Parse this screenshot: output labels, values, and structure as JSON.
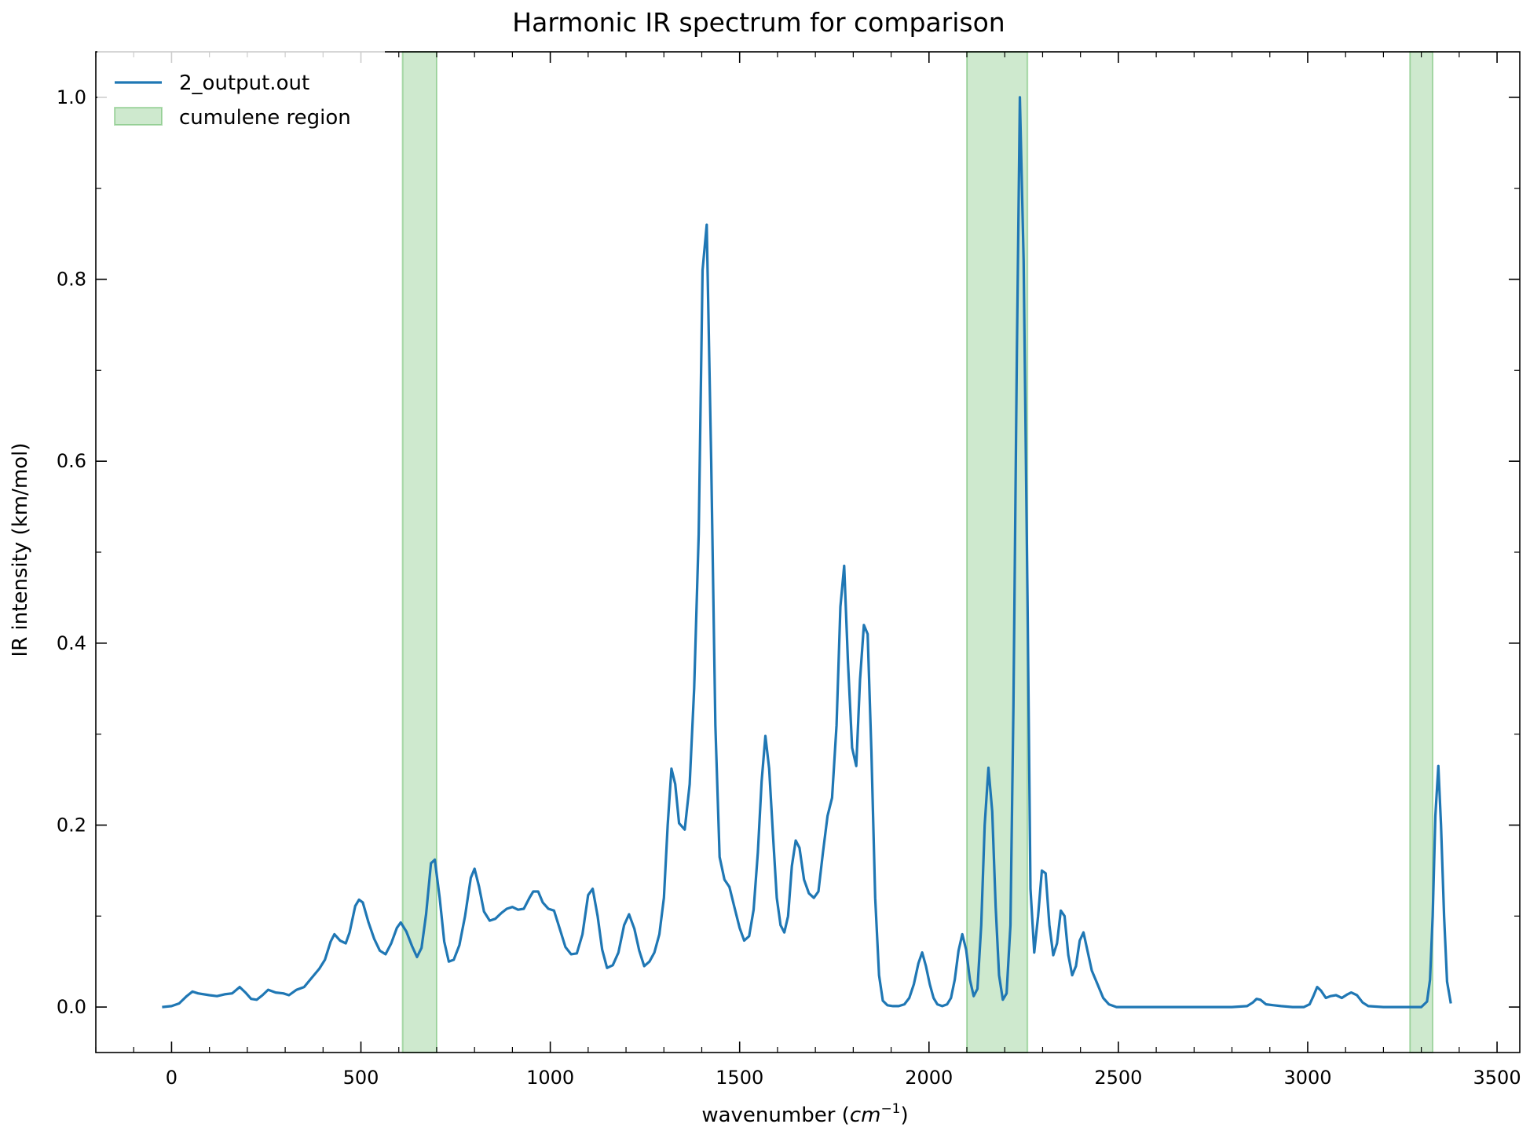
{
  "chart_data": {
    "type": "line",
    "title": "Harmonic IR spectrum for comparison",
    "xlabel": "wavenumber",
    "xlabel_unit_base": "cm",
    "xlabel_unit_exp": "−1",
    "ylabel": "IR intensity (km/mol)",
    "xlim": [
      -200,
      3560
    ],
    "ylim": [
      -0.05,
      1.05
    ],
    "x_ticks": [
      0,
      500,
      1000,
      1500,
      2000,
      2500,
      3000,
      3500
    ],
    "x_tick_labels": [
      "0",
      "500",
      "1000",
      "1500",
      "2000",
      "2500",
      "3000",
      "3500"
    ],
    "y_ticks": [
      0.0,
      0.2,
      0.4,
      0.6,
      0.8,
      1.0
    ],
    "y_tick_labels": [
      "0.0",
      "0.2",
      "0.4",
      "0.6",
      "0.8",
      "1.0"
    ],
    "grid": false,
    "legend_position": "top-left",
    "series": [
      {
        "name": "2_output.out",
        "color": "#1f77b4",
        "points": [
          [
            -25,
            0.0
          ],
          [
            0,
            0.001
          ],
          [
            20,
            0.004
          ],
          [
            40,
            0.012
          ],
          [
            55,
            0.017
          ],
          [
            70,
            0.015
          ],
          [
            100,
            0.013
          ],
          [
            120,
            0.012
          ],
          [
            140,
            0.014
          ],
          [
            160,
            0.015
          ],
          [
            180,
            0.022
          ],
          [
            195,
            0.016
          ],
          [
            210,
            0.009
          ],
          [
            225,
            0.008
          ],
          [
            240,
            0.013
          ],
          [
            255,
            0.019
          ],
          [
            275,
            0.016
          ],
          [
            295,
            0.015
          ],
          [
            310,
            0.013
          ],
          [
            330,
            0.019
          ],
          [
            350,
            0.022
          ],
          [
            370,
            0.032
          ],
          [
            390,
            0.042
          ],
          [
            405,
            0.052
          ],
          [
            420,
            0.072
          ],
          [
            430,
            0.08
          ],
          [
            445,
            0.073
          ],
          [
            460,
            0.07
          ],
          [
            470,
            0.082
          ],
          [
            485,
            0.111
          ],
          [
            495,
            0.118
          ],
          [
            505,
            0.115
          ],
          [
            520,
            0.093
          ],
          [
            535,
            0.075
          ],
          [
            550,
            0.062
          ],
          [
            565,
            0.058
          ],
          [
            580,
            0.07
          ],
          [
            595,
            0.087
          ],
          [
            605,
            0.093
          ],
          [
            620,
            0.083
          ],
          [
            635,
            0.067
          ],
          [
            648,
            0.055
          ],
          [
            660,
            0.065
          ],
          [
            672,
            0.102
          ],
          [
            685,
            0.158
          ],
          [
            695,
            0.162
          ],
          [
            708,
            0.12
          ],
          [
            720,
            0.072
          ],
          [
            732,
            0.05
          ],
          [
            745,
            0.052
          ],
          [
            760,
            0.068
          ],
          [
            775,
            0.1
          ],
          [
            790,
            0.142
          ],
          [
            800,
            0.152
          ],
          [
            812,
            0.132
          ],
          [
            825,
            0.105
          ],
          [
            840,
            0.095
          ],
          [
            855,
            0.097
          ],
          [
            870,
            0.103
          ],
          [
            885,
            0.108
          ],
          [
            900,
            0.11
          ],
          [
            915,
            0.107
          ],
          [
            930,
            0.108
          ],
          [
            945,
            0.12
          ],
          [
            955,
            0.127
          ],
          [
            968,
            0.127
          ],
          [
            980,
            0.115
          ],
          [
            995,
            0.108
          ],
          [
            1010,
            0.106
          ],
          [
            1025,
            0.086
          ],
          [
            1040,
            0.066
          ],
          [
            1055,
            0.058
          ],
          [
            1070,
            0.059
          ],
          [
            1085,
            0.08
          ],
          [
            1100,
            0.123
          ],
          [
            1112,
            0.13
          ],
          [
            1125,
            0.1
          ],
          [
            1137,
            0.063
          ],
          [
            1150,
            0.043
          ],
          [
            1165,
            0.046
          ],
          [
            1180,
            0.06
          ],
          [
            1195,
            0.09
          ],
          [
            1208,
            0.102
          ],
          [
            1222,
            0.086
          ],
          [
            1235,
            0.062
          ],
          [
            1248,
            0.045
          ],
          [
            1262,
            0.05
          ],
          [
            1275,
            0.06
          ],
          [
            1288,
            0.08
          ],
          [
            1300,
            0.12
          ],
          [
            1310,
            0.2
          ],
          [
            1320,
            0.262
          ],
          [
            1330,
            0.245
          ],
          [
            1340,
            0.202
          ],
          [
            1355,
            0.195
          ],
          [
            1368,
            0.245
          ],
          [
            1380,
            0.35
          ],
          [
            1392,
            0.52
          ],
          [
            1402,
            0.81
          ],
          [
            1413,
            0.86
          ],
          [
            1425,
            0.6
          ],
          [
            1436,
            0.31
          ],
          [
            1447,
            0.165
          ],
          [
            1460,
            0.14
          ],
          [
            1473,
            0.132
          ],
          [
            1486,
            0.11
          ],
          [
            1500,
            0.087
          ],
          [
            1512,
            0.073
          ],
          [
            1525,
            0.078
          ],
          [
            1537,
            0.107
          ],
          [
            1548,
            0.17
          ],
          [
            1558,
            0.248
          ],
          [
            1568,
            0.298
          ],
          [
            1578,
            0.262
          ],
          [
            1588,
            0.19
          ],
          [
            1598,
            0.12
          ],
          [
            1608,
            0.09
          ],
          [
            1618,
            0.082
          ],
          [
            1628,
            0.1
          ],
          [
            1638,
            0.155
          ],
          [
            1648,
            0.183
          ],
          [
            1658,
            0.175
          ],
          [
            1670,
            0.14
          ],
          [
            1683,
            0.125
          ],
          [
            1696,
            0.12
          ],
          [
            1708,
            0.127
          ],
          [
            1720,
            0.17
          ],
          [
            1732,
            0.21
          ],
          [
            1744,
            0.23
          ],
          [
            1756,
            0.31
          ],
          [
            1766,
            0.44
          ],
          [
            1776,
            0.485
          ],
          [
            1786,
            0.38
          ],
          [
            1797,
            0.285
          ],
          [
            1808,
            0.265
          ],
          [
            1818,
            0.36
          ],
          [
            1828,
            0.42
          ],
          [
            1838,
            0.41
          ],
          [
            1848,
            0.28
          ],
          [
            1858,
            0.12
          ],
          [
            1868,
            0.035
          ],
          [
            1878,
            0.007
          ],
          [
            1890,
            0.002
          ],
          [
            1905,
            0.001
          ],
          [
            1920,
            0.001
          ],
          [
            1935,
            0.003
          ],
          [
            1948,
            0.01
          ],
          [
            1960,
            0.025
          ],
          [
            1972,
            0.048
          ],
          [
            1982,
            0.06
          ],
          [
            1992,
            0.045
          ],
          [
            2002,
            0.025
          ],
          [
            2012,
            0.01
          ],
          [
            2022,
            0.003
          ],
          [
            2035,
            0.001
          ],
          [
            2048,
            0.003
          ],
          [
            2058,
            0.01
          ],
          [
            2068,
            0.03
          ],
          [
            2078,
            0.062
          ],
          [
            2088,
            0.08
          ],
          [
            2098,
            0.063
          ],
          [
            2108,
            0.03
          ],
          [
            2118,
            0.012
          ],
          [
            2128,
            0.02
          ],
          [
            2138,
            0.09
          ],
          [
            2147,
            0.2
          ],
          [
            2157,
            0.263
          ],
          [
            2167,
            0.215
          ],
          [
            2176,
            0.11
          ],
          [
            2185,
            0.035
          ],
          [
            2195,
            0.008
          ],
          [
            2205,
            0.015
          ],
          [
            2215,
            0.09
          ],
          [
            2223,
            0.33
          ],
          [
            2232,
            0.72
          ],
          [
            2240,
            1.0
          ],
          [
            2250,
            0.82
          ],
          [
            2260,
            0.45
          ],
          [
            2268,
            0.13
          ],
          [
            2278,
            0.06
          ],
          [
            2288,
            0.1
          ],
          [
            2298,
            0.15
          ],
          [
            2308,
            0.147
          ],
          [
            2318,
            0.09
          ],
          [
            2328,
            0.057
          ],
          [
            2338,
            0.07
          ],
          [
            2348,
            0.106
          ],
          [
            2358,
            0.1
          ],
          [
            2368,
            0.057
          ],
          [
            2378,
            0.035
          ],
          [
            2388,
            0.045
          ],
          [
            2398,
            0.073
          ],
          [
            2408,
            0.082
          ],
          [
            2418,
            0.063
          ],
          [
            2430,
            0.04
          ],
          [
            2445,
            0.025
          ],
          [
            2460,
            0.01
          ],
          [
            2475,
            0.003
          ],
          [
            2495,
            0.0
          ],
          [
            2600,
            0.0
          ],
          [
            2800,
            0.0
          ],
          [
            2840,
            0.001
          ],
          [
            2855,
            0.005
          ],
          [
            2865,
            0.009
          ],
          [
            2875,
            0.008
          ],
          [
            2890,
            0.003
          ],
          [
            2910,
            0.002
          ],
          [
            2930,
            0.001
          ],
          [
            2960,
            0.0
          ],
          [
            2990,
            0.0
          ],
          [
            3005,
            0.003
          ],
          [
            3015,
            0.012
          ],
          [
            3025,
            0.022
          ],
          [
            3035,
            0.018
          ],
          [
            3048,
            0.01
          ],
          [
            3060,
            0.012
          ],
          [
            3075,
            0.013
          ],
          [
            3090,
            0.01
          ],
          [
            3105,
            0.014
          ],
          [
            3115,
            0.016
          ],
          [
            3130,
            0.013
          ],
          [
            3145,
            0.005
          ],
          [
            3160,
            0.001
          ],
          [
            3200,
            0.0
          ],
          [
            3260,
            0.0
          ],
          [
            3300,
            0.0
          ],
          [
            3315,
            0.006
          ],
          [
            3323,
            0.03
          ],
          [
            3330,
            0.1
          ],
          [
            3337,
            0.21
          ],
          [
            3345,
            0.265
          ],
          [
            3352,
            0.2
          ],
          [
            3360,
            0.1
          ],
          [
            3368,
            0.028
          ],
          [
            3378,
            0.004
          ]
        ]
      }
    ],
    "shaded_regions": {
      "name": "cumulene region",
      "color": "#2ca02c",
      "ranges": [
        [
          610,
          700
        ],
        [
          2100,
          2260
        ],
        [
          3270,
          3330
        ]
      ]
    }
  }
}
